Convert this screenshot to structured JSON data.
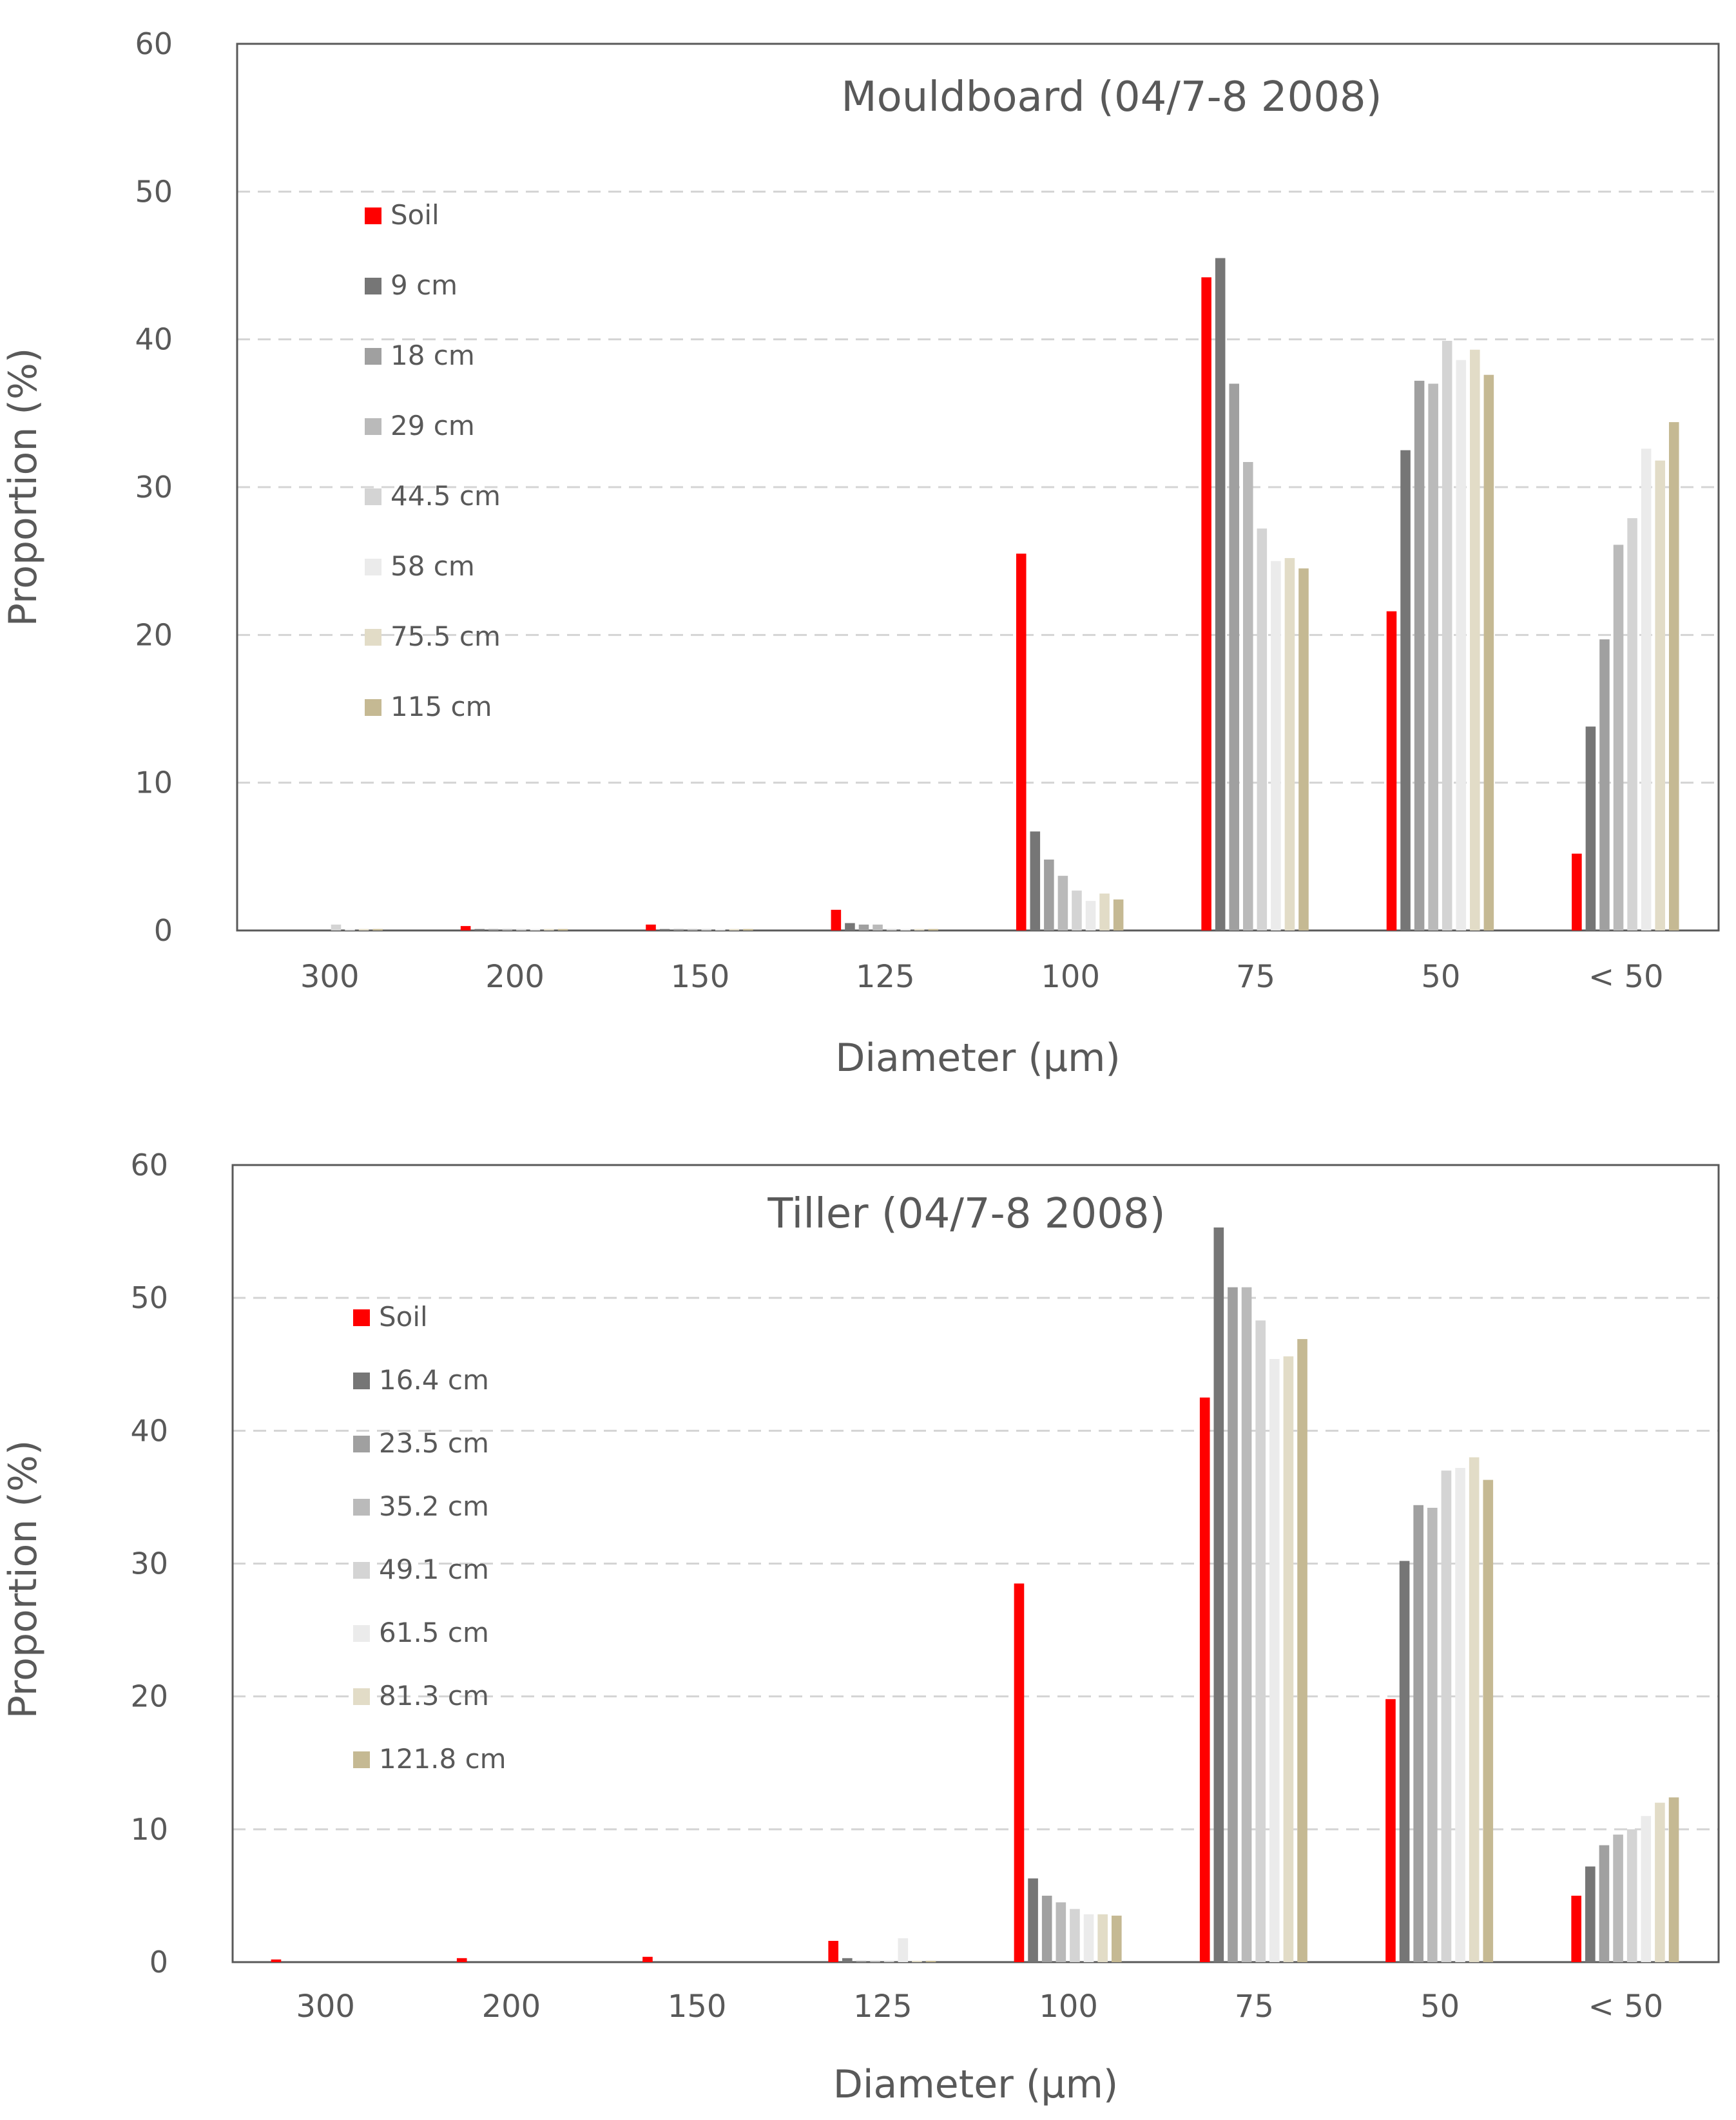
{
  "chart_data": [
    {
      "type": "bar",
      "title": "Mouldboard (04/7-8 2008)",
      "xlabel": "Diameter (µm)",
      "ylabel": "Proportion (%)",
      "ylim": [
        0,
        60
      ],
      "yticks": [
        0,
        10,
        20,
        30,
        40,
        50,
        60
      ],
      "ytick_labels": [
        "0",
        "10",
        "20",
        "30",
        "40",
        "50",
        "60"
      ],
      "grid": "horizontal dashed",
      "legend_position": "top-left",
      "categories": [
        "300",
        "200",
        "150",
        "125",
        "100",
        "75",
        "50",
        "< 50"
      ],
      "series": [
        {
          "name": "Soil",
          "color": "#ff0000",
          "values": [
            0,
            0.3,
            0.4,
            1.4,
            25.5,
            44.2,
            21.6,
            5.2
          ]
        },
        {
          "name": "9 cm",
          "color": "#767676",
          "values": [
            0,
            0.1,
            0.1,
            0.5,
            6.7,
            45.5,
            32.5,
            13.8
          ]
        },
        {
          "name": "18 cm",
          "color": "#a0a0a0",
          "values": [
            0,
            0.1,
            0.1,
            0.4,
            4.8,
            37.0,
            37.2,
            19.7
          ]
        },
        {
          "name": "29 cm",
          "color": "#bababa",
          "values": [
            0,
            0.1,
            0.1,
            0.4,
            3.7,
            31.7,
            37.0,
            26.1
          ]
        },
        {
          "name": "44.5 cm",
          "color": "#d4d4d4",
          "values": [
            0.4,
            0.1,
            0.1,
            0.1,
            2.7,
            27.2,
            39.9,
            27.9
          ]
        },
        {
          "name": "58 cm",
          "color": "#ebebeb",
          "values": [
            0.1,
            0.1,
            0.1,
            0.1,
            2.0,
            25.0,
            38.6,
            32.6
          ]
        },
        {
          "name": "75.5 cm",
          "color": "#e2dcc7",
          "values": [
            0.1,
            0.1,
            0.1,
            0.1,
            2.5,
            25.2,
            39.3,
            31.8
          ]
        },
        {
          "name": "115 cm",
          "color": "#c5b993",
          "values": [
            0.1,
            0.1,
            0.1,
            0.1,
            2.1,
            24.5,
            37.6,
            34.4
          ]
        }
      ]
    },
    {
      "type": "bar",
      "title": "Tiller (04/7-8 2008)",
      "xlabel": "Diameter (µm)",
      "ylabel": "Proportion (%)",
      "ylim": [
        0,
        60
      ],
      "yticks": [
        0,
        10,
        20,
        30,
        40,
        50,
        60
      ],
      "ytick_labels": [
        "0",
        "10",
        "20",
        "30",
        "40",
        "50",
        "60"
      ],
      "grid": "horizontal dashed",
      "legend_position": "top-left",
      "categories": [
        "300",
        "200",
        "150",
        "125",
        "100",
        "75",
        "50",
        "< 50"
      ],
      "series": [
        {
          "name": "Soil",
          "color": "#ff0000",
          "values": [
            0.2,
            0.3,
            0.4,
            1.6,
            28.5,
            42.5,
            19.8,
            5.0
          ]
        },
        {
          "name": "16.4 cm",
          "color": "#767676",
          "values": [
            0,
            0,
            0,
            0.3,
            6.3,
            55.3,
            30.2,
            7.2
          ]
        },
        {
          "name": "23.5 cm",
          "color": "#a0a0a0",
          "values": [
            0,
            0,
            0,
            0.1,
            5.0,
            50.8,
            34.4,
            8.8
          ]
        },
        {
          "name": "35.2 cm",
          "color": "#bababa",
          "values": [
            0,
            0,
            0,
            0.1,
            4.5,
            50.8,
            34.2,
            9.6
          ]
        },
        {
          "name": "49.1 cm",
          "color": "#d4d4d4",
          "values": [
            0,
            0,
            0,
            0.1,
            4.0,
            48.3,
            37.0,
            10.0
          ]
        },
        {
          "name": "61.5 cm",
          "color": "#ebebeb",
          "values": [
            0,
            0,
            0,
            1.8,
            3.6,
            45.4,
            37.2,
            11.0
          ]
        },
        {
          "name": "81.3 cm",
          "color": "#e2dcc7",
          "values": [
            0,
            0,
            0,
            0.1,
            3.6,
            45.6,
            38.0,
            12.0
          ]
        },
        {
          "name": "121.8 cm",
          "color": "#c5b993",
          "values": [
            0,
            0,
            0,
            0.1,
            3.5,
            46.9,
            36.3,
            12.4
          ]
        }
      ]
    }
  ]
}
